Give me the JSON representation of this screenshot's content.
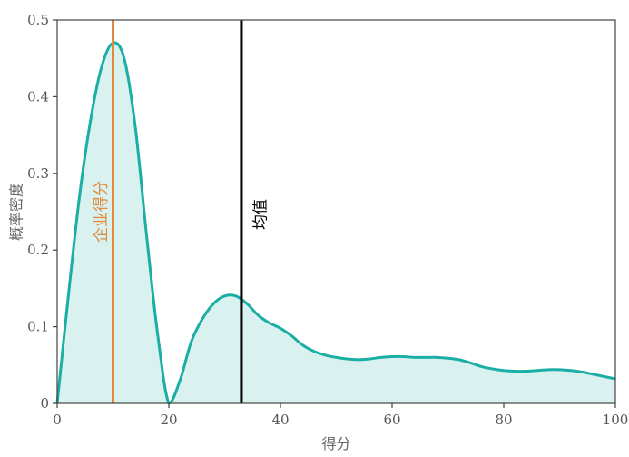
{
  "chart_data": {
    "type": "area",
    "xlabel": "得分",
    "ylabel": "概率密度",
    "xlim": [
      0,
      100
    ],
    "ylim": [
      0,
      0.5
    ],
    "x_ticks": [
      0,
      20,
      40,
      60,
      80,
      100
    ],
    "y_ticks": [
      0,
      0.1,
      0.2,
      0.3,
      0.4,
      0.5
    ],
    "x_tick_labels": [
      "0",
      "20",
      "40",
      "60",
      "80",
      "100"
    ],
    "y_tick_labels": [
      "0",
      "0.1",
      "0.2",
      "0.3",
      "0.4",
      "0.5"
    ],
    "grid": false,
    "series": [
      {
        "x": [
          0,
          2,
          4,
          6,
          8,
          10,
          12,
          14,
          16,
          18,
          20,
          22,
          24,
          26,
          28,
          30,
          32,
          34,
          36,
          38,
          40,
          42,
          44,
          46,
          48,
          50,
          52,
          54,
          56,
          58,
          60,
          62,
          64,
          66,
          68,
          70,
          72,
          74,
          76,
          78,
          80,
          82,
          84,
          86,
          88,
          90,
          92,
          94,
          96,
          98,
          100
        ],
        "y": [
          0.0,
          0.14,
          0.27,
          0.37,
          0.44,
          0.47,
          0.45,
          0.36,
          0.22,
          0.09,
          0.0,
          0.03,
          0.08,
          0.11,
          0.13,
          0.14,
          0.14,
          0.13,
          0.115,
          0.105,
          0.098,
          0.088,
          0.076,
          0.068,
          0.063,
          0.06,
          0.058,
          0.057,
          0.058,
          0.06,
          0.061,
          0.061,
          0.06,
          0.06,
          0.06,
          0.059,
          0.057,
          0.053,
          0.048,
          0.045,
          0.043,
          0.042,
          0.042,
          0.043,
          0.044,
          0.044,
          0.043,
          0.041,
          0.038,
          0.035,
          0.032
        ],
        "color": "#1aaea4",
        "fill_color": "#d9f2f0"
      }
    ],
    "vlines": [
      {
        "x": 10,
        "label": "企业得分",
        "color": "#e08a3c"
      },
      {
        "x": 33,
        "label": "均值",
        "color": "#000000"
      }
    ]
  }
}
